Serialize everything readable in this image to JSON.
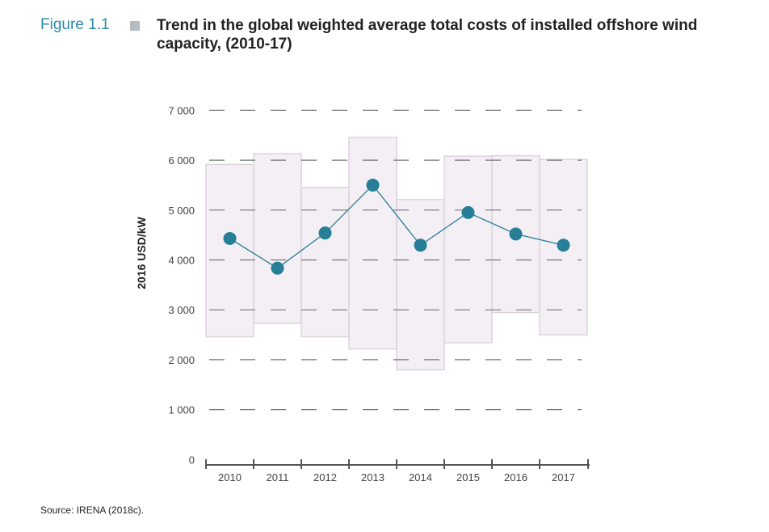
{
  "figure": {
    "label": "Figure 1.1",
    "title": "Trend in the global weighted average total costs of installed offshore wind capacity, (2010-17)",
    "source": "Source: IRENA (2018c)."
  },
  "chart_data": {
    "type": "line",
    "title": "Trend in the global weighted average total costs of installed offshore wind capacity, (2010-17)",
    "xlabel": "",
    "ylabel": "2016 USD/kW",
    "categories": [
      "2010",
      "2011",
      "2012",
      "2013",
      "2014",
      "2015",
      "2016",
      "2017"
    ],
    "yticks": [
      "0",
      "1 000",
      "2 000",
      "3 000",
      "4 000",
      "5 000",
      "6 000",
      "7 000"
    ],
    "ylim": [
      0,
      7000
    ],
    "grid": "dashed horizontal",
    "series": [
      {
        "values": [
          4430,
          3835,
          4540,
          5500,
          4295,
          4950,
          4520,
          4295
        ],
        "color": "#267f96"
      }
    ],
    "ranges": {
      "low": [
        2460,
        2730,
        2460,
        2215,
        1795,
        2340,
        2945,
        2500
      ],
      "high": [
        5915,
        6130,
        5455,
        6455,
        5210,
        6080,
        6090,
        6015
      ],
      "color": "#f3eff5"
    }
  }
}
